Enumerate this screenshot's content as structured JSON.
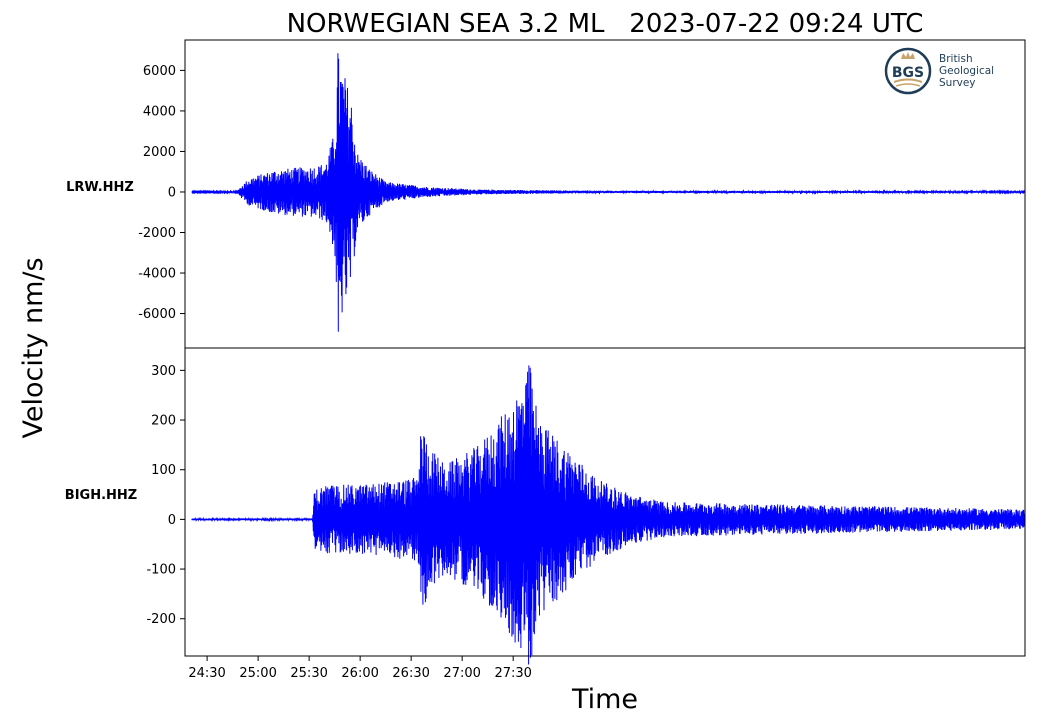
{
  "chart_data": {
    "type": "line",
    "title": "NORWEGIAN SEA 3.2 ML   2023-07-22 09:24 UTC",
    "ylabel": "Velocity nm/s",
    "xlabel": "Time",
    "x_ticks": [
      "24:30",
      "25:00",
      "25:30",
      "26:00",
      "26:30",
      "27:00",
      "27:30"
    ],
    "x_range_seconds": [
      1457,
      1951
    ],
    "x_tick_seconds": [
      1470,
      1500,
      1530,
      1560,
      1590,
      1620,
      1650
    ],
    "trace_color": "#0000ff",
    "panels": [
      {
        "station": "LRW.HHZ",
        "ylim": [
          -7700,
          7500
        ],
        "y_ticks": [
          6000,
          4000,
          2000,
          0,
          -2000,
          -4000,
          -6000
        ],
        "y_tick_labels": [
          "6000",
          "4000",
          "2000",
          "0",
          "-2000",
          "-4000",
          "-6000"
        ],
        "trace_start_s": 1461,
        "trace_end_s": 1951,
        "noise_level": 30,
        "p_onset_s": 1488,
        "envelope": [
          [
            1461,
            30
          ],
          [
            1488,
            40
          ],
          [
            1490,
            300
          ],
          [
            1495,
            700
          ],
          [
            1510,
            1100
          ],
          [
            1535,
            1300
          ],
          [
            1540,
            1500
          ],
          [
            1545,
            3000
          ],
          [
            1547,
            6800
          ],
          [
            1552,
            5500
          ],
          [
            1555,
            4500
          ],
          [
            1558,
            2000
          ],
          [
            1565,
            1200
          ],
          [
            1575,
            500
          ],
          [
            1600,
            250
          ],
          [
            1630,
            120
          ],
          [
            1700,
            60
          ],
          [
            1951,
            40
          ]
        ],
        "peak_max": 6850,
        "peak_min": -6900
      },
      {
        "station": "BIGH.HHZ",
        "ylim": [
          -275,
          345
        ],
        "y_ticks": [
          300,
          200,
          100,
          0,
          -100,
          -200
        ],
        "y_tick_labels": [
          "300",
          "200",
          "100",
          "0",
          "-100",
          "-200"
        ],
        "trace_start_s": 1461,
        "trace_end_s": 1951,
        "noise_level": 2,
        "p_onset_s": 1533,
        "envelope": [
          [
            1461,
            2
          ],
          [
            1532,
            2
          ],
          [
            1533,
            60
          ],
          [
            1540,
            70
          ],
          [
            1560,
            70
          ],
          [
            1585,
            80
          ],
          [
            1594,
            85
          ],
          [
            1596,
            200
          ],
          [
            1600,
            150
          ],
          [
            1610,
            110
          ],
          [
            1630,
            150
          ],
          [
            1648,
            230
          ],
          [
            1660,
            310
          ],
          [
            1665,
            200
          ],
          [
            1680,
            150
          ],
          [
            1700,
            80
          ],
          [
            1720,
            50
          ],
          [
            1740,
            35
          ],
          [
            1951,
            20
          ]
        ],
        "peak_max": 310,
        "peak_min": -245
      }
    ]
  },
  "logo": {
    "abbr": "BGS",
    "line1": "British",
    "line2": "Geological",
    "line3": "Survey"
  }
}
